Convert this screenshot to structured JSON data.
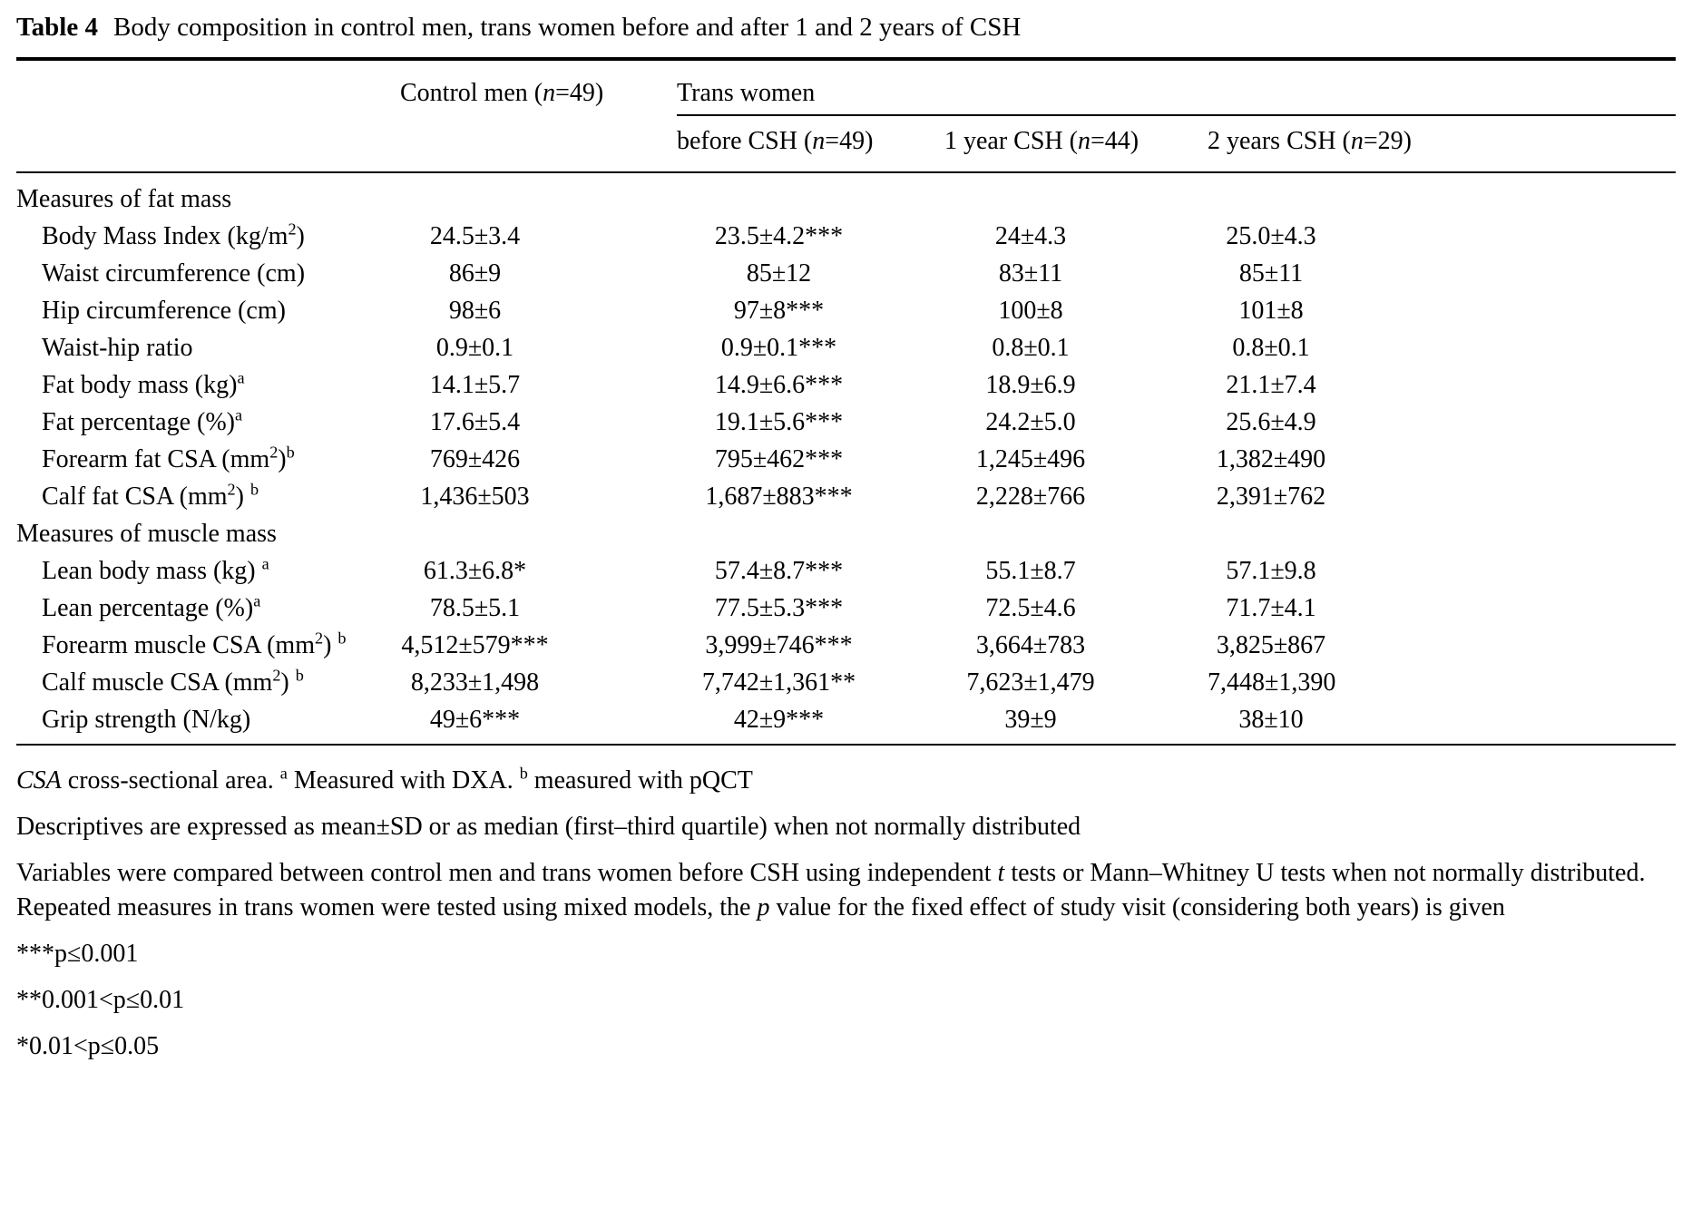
{
  "title": {
    "label": "Table 4",
    "caption": "Body composition in control men, trans women before and after 1 and 2 years of CSH"
  },
  "table": {
    "header": {
      "control": [
        {
          "t": "Control men ("
        },
        {
          "t": "n",
          "i": true
        },
        {
          "t": "=49)"
        }
      ],
      "group": "Trans women",
      "subcolumns": [
        [
          {
            "t": "before CSH ("
          },
          {
            "t": "n",
            "i": true
          },
          {
            "t": "=49)"
          }
        ],
        [
          {
            "t": "1 year CSH ("
          },
          {
            "t": "n",
            "i": true
          },
          {
            "t": "=44)"
          }
        ],
        [
          {
            "t": "2 years CSH ("
          },
          {
            "t": "n",
            "i": true
          },
          {
            "t": "=29)"
          }
        ]
      ]
    },
    "rows": [
      {
        "type": "section",
        "label": [
          {
            "t": "Measures of fat mass"
          }
        ]
      },
      {
        "type": "data",
        "label": [
          {
            "t": "Body Mass Index (kg/m"
          },
          {
            "t": "2",
            "sup": true
          },
          {
            "t": ")"
          }
        ],
        "values": [
          "24.5±3.4",
          "23.5±4.2***",
          "24±4.3",
          "25.0±4.3"
        ]
      },
      {
        "type": "data",
        "label": [
          {
            "t": "Waist circumference (cm)"
          }
        ],
        "values": [
          "86±9",
          "85±12",
          "83±11",
          "85±11"
        ]
      },
      {
        "type": "data",
        "label": [
          {
            "t": "Hip circumference (cm)"
          }
        ],
        "values": [
          "98±6",
          "97±8***",
          "100±8",
          "101±8"
        ]
      },
      {
        "type": "data",
        "label": [
          {
            "t": "Waist-hip ratio"
          }
        ],
        "values": [
          "0.9±0.1",
          "0.9±0.1***",
          "0.8±0.1",
          "0.8±0.1"
        ]
      },
      {
        "type": "data",
        "label": [
          {
            "t": "Fat body mass (kg)"
          },
          {
            "t": "a",
            "sup": true
          }
        ],
        "values": [
          "14.1±5.7",
          "14.9±6.6***",
          "18.9±6.9",
          "21.1±7.4"
        ]
      },
      {
        "type": "data",
        "label": [
          {
            "t": "Fat percentage (%)"
          },
          {
            "t": "a",
            "sup": true
          }
        ],
        "values": [
          "17.6±5.4",
          "19.1±5.6***",
          "24.2±5.0",
          "25.6±4.9"
        ]
      },
      {
        "type": "data",
        "label": [
          {
            "t": "Forearm fat CSA (mm"
          },
          {
            "t": "2",
            "sup": true
          },
          {
            "t": ")"
          },
          {
            "t": "b",
            "sup": true
          }
        ],
        "values": [
          "769±426",
          "795±462***",
          "1,245±496",
          "1,382±490"
        ]
      },
      {
        "type": "data",
        "label": [
          {
            "t": "Calf fat CSA (mm"
          },
          {
            "t": "2",
            "sup": true
          },
          {
            "t": ") "
          },
          {
            "t": "b",
            "sup": true
          }
        ],
        "values": [
          "1,436±503",
          "1,687±883***",
          "2,228±766",
          "2,391±762"
        ]
      },
      {
        "type": "section",
        "label": [
          {
            "t": "Measures of muscle mass"
          }
        ]
      },
      {
        "type": "data",
        "label": [
          {
            "t": "Lean body mass (kg) "
          },
          {
            "t": "a",
            "sup": true
          }
        ],
        "values": [
          "61.3±6.8*",
          "57.4±8.7***",
          "55.1±8.7",
          "57.1±9.8"
        ]
      },
      {
        "type": "data",
        "label": [
          {
            "t": "Lean percentage (%)"
          },
          {
            "t": "a",
            "sup": true
          }
        ],
        "values": [
          "78.5±5.1",
          "77.5±5.3***",
          "72.5±4.6",
          "71.7±4.1"
        ]
      },
      {
        "type": "data",
        "label": [
          {
            "t": "Forearm muscle CSA (mm"
          },
          {
            "t": "2",
            "sup": true
          },
          {
            "t": ") "
          },
          {
            "t": "b",
            "sup": true
          }
        ],
        "values": [
          "4,512±579***",
          "3,999±746***",
          "3,664±783",
          "3,825±867"
        ]
      },
      {
        "type": "data",
        "label": [
          {
            "t": "Calf muscle CSA (mm"
          },
          {
            "t": "2",
            "sup": true
          },
          {
            "t": ") "
          },
          {
            "t": "b",
            "sup": true
          }
        ],
        "values": [
          "8,233±1,498",
          "7,742±1,361**",
          "7,623±1,479",
          "7,448±1,390"
        ]
      },
      {
        "type": "data",
        "label": [
          {
            "t": "Grip strength (N/kg)"
          }
        ],
        "values": [
          "49±6***",
          "42±9***",
          "39±9",
          "38±10"
        ]
      }
    ]
  },
  "footnotes": [
    {
      "segments": [
        {
          "t": "CSA",
          "i": true
        },
        {
          "t": " cross-sectional area. "
        },
        {
          "t": "a",
          "sup": true
        },
        {
          "t": " Measured with DXA. "
        },
        {
          "t": "b",
          "sup": true
        },
        {
          "t": " measured with pQCT"
        }
      ]
    },
    {
      "segments": [
        {
          "t": "Descriptives are expressed as mean±SD or as median (first–third quartile) when not normally distributed"
        }
      ]
    },
    {
      "segments": [
        {
          "t": "Variables were compared between control men and trans women before CSH using independent "
        },
        {
          "t": "t",
          "i": true
        },
        {
          "t": " tests or Mann–Whitney U tests when not normally distributed. Repeated measures in trans women were tested using mixed models, the "
        },
        {
          "t": "p",
          "i": true
        },
        {
          "t": " value for the fixed effect of study visit (considering both years) is given"
        }
      ]
    },
    {
      "segments": [
        {
          "t": "***p≤0.001"
        }
      ]
    },
    {
      "segments": [
        {
          "t": "**0.001<p≤0.01"
        }
      ]
    },
    {
      "segments": [
        {
          "t": "*0.01<p≤0.05"
        }
      ]
    }
  ]
}
